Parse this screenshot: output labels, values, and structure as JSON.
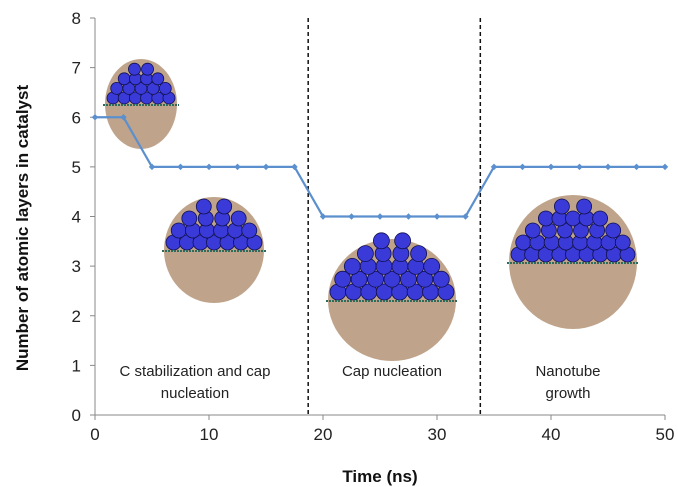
{
  "chart_data": {
    "type": "line",
    "xlabel": "Time (ns)",
    "ylabel": "Number of atomic layers in catalyst",
    "xlim": [
      0,
      50
    ],
    "ylim": [
      0,
      8
    ],
    "x_ticks": [
      0,
      10,
      20,
      30,
      40,
      50
    ],
    "y_ticks": [
      0,
      1,
      2,
      3,
      4,
      5,
      6,
      7,
      8
    ],
    "grid": false,
    "series": [
      {
        "color": "#5b8fce",
        "x": [
          0,
          2.5,
          5,
          7.5,
          10,
          12.5,
          15,
          17.5,
          20,
          22.5,
          25,
          27.5,
          30,
          32.5,
          35,
          37.5,
          40,
          42.5,
          45,
          47.5,
          50
        ],
        "y": [
          6,
          6,
          5,
          5,
          5,
          5,
          5,
          5,
          4,
          4,
          4,
          4,
          4,
          4,
          5,
          5,
          5,
          5,
          5,
          5,
          5
        ]
      }
    ],
    "phase_boundaries": [
      18.7,
      33.8
    ],
    "phases": [
      {
        "lines": [
          "C stabilization and cap",
          "nucleation"
        ]
      },
      {
        "lines": [
          "Cap nucleation"
        ]
      },
      {
        "lines": [
          "Nanotube",
          "growth"
        ]
      }
    ],
    "insets": [
      {
        "name": "catalyst-particle-6-layers"
      },
      {
        "name": "catalyst-particle-5-layers"
      },
      {
        "name": "catalyst-particle-4-layers"
      },
      {
        "name": "catalyst-particle-nanotube"
      }
    ]
  },
  "colors": {
    "line": "#5b8fce",
    "atom_fill": "#3a3ad8",
    "atom_stroke": "#101050",
    "carbon": "#8a5a2b",
    "substrate": "#2e6b5a"
  }
}
